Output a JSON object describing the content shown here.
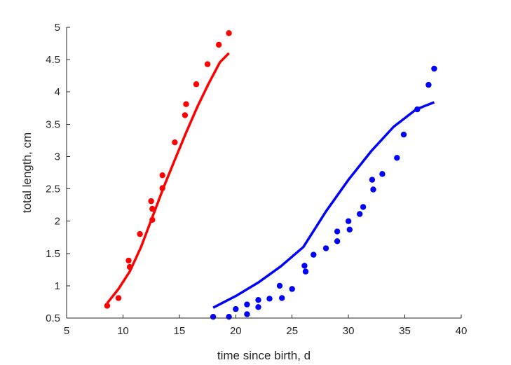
{
  "chart_data": {
    "type": "scatter",
    "title": "",
    "xlabel": "time since birth, d",
    "ylabel": "total length, cm",
    "xlim": [
      5,
      40
    ],
    "ylim": [
      0.5,
      5
    ],
    "grid": false,
    "box": false,
    "xticks": [
      5,
      10,
      15,
      20,
      25,
      30,
      35,
      40
    ],
    "xtick_labels": [
      "5",
      "10",
      "15",
      "20",
      "25",
      "30",
      "35",
      "40"
    ],
    "yticks": [
      0.5,
      1,
      1.5,
      2,
      2.5,
      3,
      3.5,
      4,
      4.5,
      5
    ],
    "ytick_labels": [
      "0.5",
      "1",
      "1.5",
      "2",
      "2.5",
      "3",
      "3.5",
      "4",
      "4.5",
      "5"
    ],
    "series": [
      {
        "kind": "points",
        "color": "#ff0000",
        "points": [
          {
            "x": 8.6,
            "y": 0.69
          },
          {
            "x": 9.6,
            "y": 0.81
          },
          {
            "x": 10.5,
            "y": 1.39
          },
          {
            "x": 10.6,
            "y": 1.29
          },
          {
            "x": 11.5,
            "y": 1.8
          },
          {
            "x": 12.5,
            "y": 2.31
          },
          {
            "x": 12.6,
            "y": 2.19
          },
          {
            "x": 12.6,
            "y": 2.02
          },
          {
            "x": 13.5,
            "y": 2.71
          },
          {
            "x": 13.5,
            "y": 2.51
          },
          {
            "x": 14.6,
            "y": 3.22
          },
          {
            "x": 15.5,
            "y": 3.64
          },
          {
            "x": 15.6,
            "y": 3.81
          },
          {
            "x": 16.5,
            "y": 4.12
          },
          {
            "x": 17.5,
            "y": 4.43
          },
          {
            "x": 18.5,
            "y": 4.73
          },
          {
            "x": 19.4,
            "y": 4.91
          }
        ]
      },
      {
        "kind": "line",
        "color": "#ff0000",
        "points": [
          {
            "x": 8.6,
            "y": 0.73
          },
          {
            "x": 9.6,
            "y": 0.95
          },
          {
            "x": 10.6,
            "y": 1.22
          },
          {
            "x": 11.6,
            "y": 1.6
          },
          {
            "x": 12.6,
            "y": 2.06
          },
          {
            "x": 13.6,
            "y": 2.52
          },
          {
            "x": 14.6,
            "y": 2.95
          },
          {
            "x": 15.6,
            "y": 3.37
          },
          {
            "x": 16.6,
            "y": 3.77
          },
          {
            "x": 17.6,
            "y": 4.13
          },
          {
            "x": 18.6,
            "y": 4.46
          },
          {
            "x": 19.4,
            "y": 4.6
          }
        ]
      },
      {
        "kind": "points",
        "color": "#0000ff",
        "points": [
          {
            "x": 18.0,
            "y": 0.52
          },
          {
            "x": 19.4,
            "y": 0.52
          },
          {
            "x": 20.0,
            "y": 0.64
          },
          {
            "x": 21.0,
            "y": 0.71
          },
          {
            "x": 21.0,
            "y": 0.56
          },
          {
            "x": 22.0,
            "y": 0.78
          },
          {
            "x": 22.0,
            "y": 0.67
          },
          {
            "x": 23.0,
            "y": 0.8
          },
          {
            "x": 23.9,
            "y": 1.0
          },
          {
            "x": 24.1,
            "y": 0.81
          },
          {
            "x": 25.0,
            "y": 0.95
          },
          {
            "x": 26.1,
            "y": 1.31
          },
          {
            "x": 26.2,
            "y": 1.22
          },
          {
            "x": 26.9,
            "y": 1.48
          },
          {
            "x": 28.0,
            "y": 1.58
          },
          {
            "x": 29.0,
            "y": 1.84
          },
          {
            "x": 29.0,
            "y": 1.69
          },
          {
            "x": 30.0,
            "y": 2.0
          },
          {
            "x": 30.1,
            "y": 1.87
          },
          {
            "x": 31.0,
            "y": 2.11
          },
          {
            "x": 31.3,
            "y": 2.22
          },
          {
            "x": 32.1,
            "y": 2.64
          },
          {
            "x": 32.2,
            "y": 2.49
          },
          {
            "x": 33.0,
            "y": 2.73
          },
          {
            "x": 34.3,
            "y": 2.98
          },
          {
            "x": 34.9,
            "y": 3.34
          },
          {
            "x": 36.1,
            "y": 3.73
          },
          {
            "x": 37.1,
            "y": 4.11
          },
          {
            "x": 37.6,
            "y": 4.36
          }
        ]
      },
      {
        "kind": "line",
        "color": "#0000ff",
        "points": [
          {
            "x": 18.0,
            "y": 0.66
          },
          {
            "x": 20.0,
            "y": 0.84
          },
          {
            "x": 22.0,
            "y": 1.05
          },
          {
            "x": 24.0,
            "y": 1.3
          },
          {
            "x": 26.0,
            "y": 1.6
          },
          {
            "x": 28.0,
            "y": 2.15
          },
          {
            "x": 30.0,
            "y": 2.64
          },
          {
            "x": 32.0,
            "y": 3.08
          },
          {
            "x": 34.0,
            "y": 3.46
          },
          {
            "x": 36.0,
            "y": 3.73
          },
          {
            "x": 37.6,
            "y": 3.84
          }
        ]
      }
    ]
  }
}
